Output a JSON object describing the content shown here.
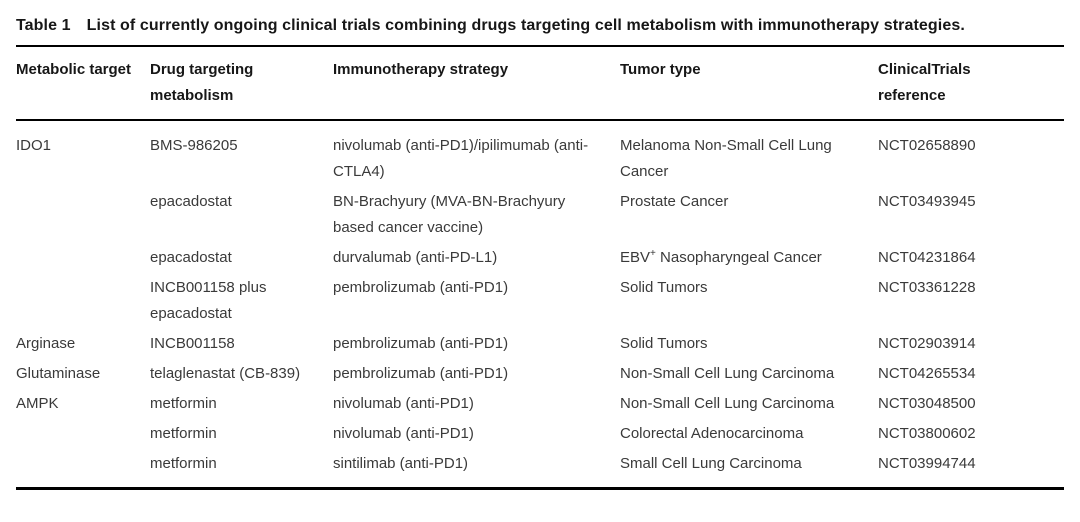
{
  "title": {
    "label": "Table 1",
    "text": "List of currently ongoing clinical trials combining drugs targeting cell metabolism with immunotherapy strategies."
  },
  "table": {
    "columns": {
      "metabolic_target": "Metabolic target",
      "drug": "Drug targeting metabolism",
      "immunotherapy": "Immunotherapy strategy",
      "tumor": "Tumor type",
      "reference": "ClinicalTrials reference"
    },
    "rows": [
      {
        "target": "IDO1",
        "drug": "BMS-986205",
        "immunotherapy": "nivolumab (anti-PD1)/ipilimumab (anti-CTLA4)",
        "tumor": "Melanoma Non-Small Cell Lung Cancer",
        "nct": "NCT02658890"
      },
      {
        "target": "",
        "drug": "epacadostat",
        "immunotherapy": "BN-Brachyury (MVA-BN-Brachyury based cancer vaccine)",
        "tumor": "Prostate Cancer",
        "nct": "NCT03493945"
      },
      {
        "target": "",
        "drug": "epacadostat",
        "immunotherapy": "durvalumab (anti-PD-L1)",
        "tumor_base": "EBV",
        "tumor_sup": "+",
        "tumor_rest": " Nasopharyngeal Cancer",
        "nct": "NCT04231864"
      },
      {
        "target": "",
        "drug": "INCB001158 plus epacadostat",
        "immunotherapy": "pembrolizumab (anti-PD1)",
        "tumor": "Solid Tumors",
        "nct": "NCT03361228"
      },
      {
        "target": "Arginase",
        "drug": "INCB001158",
        "immunotherapy": "pembrolizumab (anti-PD1)",
        "tumor": "Solid Tumors",
        "nct": "NCT02903914"
      },
      {
        "target": "Glutaminase",
        "drug": "telaglenastat (CB-839)",
        "immunotherapy": "pembrolizumab (anti-PD1)",
        "tumor": "Non-Small Cell Lung Carcinoma",
        "nct": "NCT04265534"
      },
      {
        "target": "AMPK",
        "drug": "metformin",
        "immunotherapy": "nivolumab (anti-PD1)",
        "tumor": "Non-Small Cell Lung Carcinoma",
        "nct": "NCT03048500"
      },
      {
        "target": "",
        "drug": "metformin",
        "immunotherapy": "nivolumab (anti-PD1)",
        "tumor": "Colorectal Adenocarcinoma",
        "nct": "NCT03800602"
      },
      {
        "target": "",
        "drug": "metformin",
        "immunotherapy": "sintilimab (anti-PD1)",
        "tumor": "Small Cell Lung Carcinoma",
        "nct": "NCT03994744"
      }
    ]
  },
  "colors": {
    "heading_text": "#171717",
    "body_text": "#3a3a3a",
    "rule": "#000000",
    "background": "#ffffff"
  }
}
